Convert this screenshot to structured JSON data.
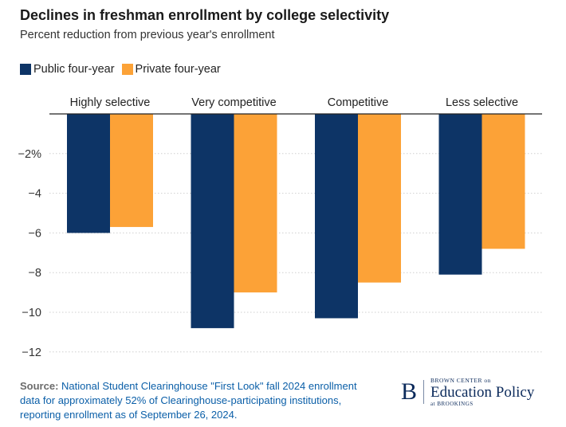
{
  "header": {
    "title": "Declines in freshman enrollment by college selectivity",
    "subtitle": "Percent reduction from previous year's enrollment"
  },
  "colors": {
    "public": "#0d3466",
    "private": "#fca237",
    "grid": "#cfcfcf",
    "axis": "#222222"
  },
  "chart_data": {
    "type": "bar",
    "title": "Declines in freshman enrollment by college selectivity",
    "subtitle": "Percent reduction from previous year's enrollment",
    "categories": [
      "Highly selective",
      "Very competitive",
      "Competitive",
      "Less selective"
    ],
    "series": [
      {
        "name": "Public four-year",
        "values": [
          -6.0,
          -10.8,
          -10.3,
          -8.1
        ]
      },
      {
        "name": "Private four-year",
        "values": [
          -5.7,
          -9.0,
          -8.5,
          -6.8
        ]
      }
    ],
    "yticks": [
      -2,
      -4,
      -6,
      -8,
      -10,
      -12
    ],
    "ytick_labels": [
      "−2%",
      "−4",
      "−6",
      "−8",
      "−10",
      "−12"
    ],
    "ylim": [
      -13,
      0
    ],
    "grid": true,
    "legend": "top-left",
    "xlabel": "",
    "ylabel": ""
  },
  "source": {
    "label": "Source:",
    "text": "National Student Clearinghouse \"First Look\" fall 2024 enrollment data for approximately 52% of Clearinghouse-participating institutions, reporting enrollment as of September 26, 2024."
  },
  "logo": {
    "letter": "B",
    "top": "BROWN CENTER on",
    "main": "Education Policy",
    "bottom": "at BROOKINGS"
  }
}
